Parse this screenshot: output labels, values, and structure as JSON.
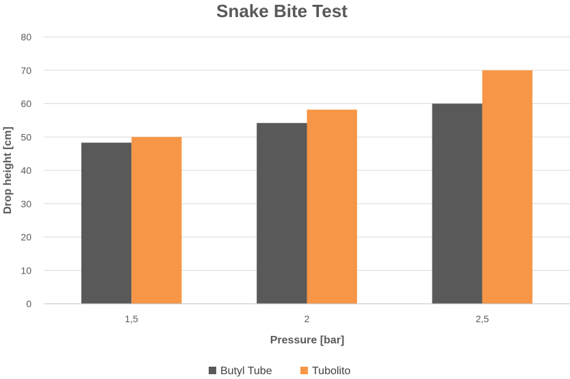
{
  "chart_data": {
    "type": "bar",
    "title": "Snake Bite Test",
    "xlabel": "Pressure [bar]",
    "ylabel": "Drop height [cm]",
    "categories": [
      "1,5",
      "2",
      "2,5"
    ],
    "series": [
      {
        "name": "Butyl Tube",
        "values": [
          48.3,
          54.2,
          60
        ],
        "color": "#595959"
      },
      {
        "name": "Tubolito",
        "values": [
          50,
          58.2,
          70
        ],
        "color": "#f79646"
      }
    ],
    "ylim": [
      0,
      80
    ],
    "yticks": [
      0,
      10,
      20,
      30,
      40,
      50,
      60,
      70,
      80
    ],
    "grid": true,
    "legend": "bottom"
  }
}
